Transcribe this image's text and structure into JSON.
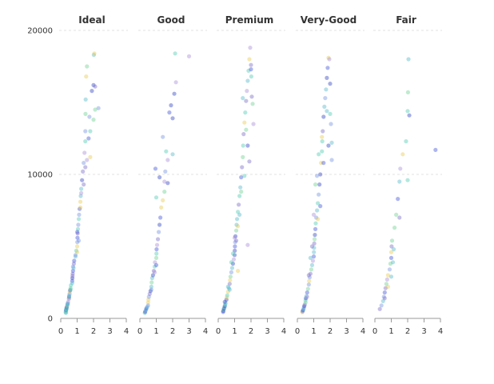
{
  "chart_data": {
    "type": "scatter",
    "title": "",
    "xlabel": "",
    "ylabel": "",
    "xlim": [
      0,
      4
    ],
    "ylim": [
      0,
      20000
    ],
    "x_ticks": [
      "0",
      "1",
      "2",
      "3",
      "4"
    ],
    "y_ticks": [
      "0",
      "10000",
      "20000"
    ],
    "grid": "horizontal dashed",
    "colors": [
      "#2a3fbf",
      "#3b4fd8",
      "#6f8fe0",
      "#4fb6c9",
      "#49c7b0",
      "#6ad08c",
      "#e6c84a",
      "#a68ad6",
      "#7667c4"
    ],
    "facets": [
      {
        "name": "Ideal",
        "points": [
          [
            0.3,
            420
          ],
          [
            0.31,
            500
          ],
          [
            0.32,
            560
          ],
          [
            0.33,
            610
          ],
          [
            0.34,
            650
          ],
          [
            0.35,
            700
          ],
          [
            0.36,
            760
          ],
          [
            0.38,
            820
          ],
          [
            0.4,
            900
          ],
          [
            0.41,
            960
          ],
          [
            0.43,
            1050
          ],
          [
            0.45,
            1150
          ],
          [
            0.5,
            1400
          ],
          [
            0.51,
            1500
          ],
          [
            0.52,
            1600
          ],
          [
            0.54,
            1700
          ],
          [
            0.55,
            1850
          ],
          [
            0.57,
            1950
          ],
          [
            0.6,
            2100
          ],
          [
            0.62,
            2300
          ],
          [
            0.7,
            2600
          ],
          [
            0.71,
            2800
          ],
          [
            0.72,
            2950
          ],
          [
            0.73,
            3100
          ],
          [
            0.75,
            3300
          ],
          [
            0.78,
            3500
          ],
          [
            0.8,
            3800
          ],
          [
            0.82,
            4000
          ],
          [
            0.9,
            4300
          ],
          [
            0.95,
            4700
          ],
          [
            1.0,
            5000
          ],
          [
            1.01,
            5300
          ],
          [
            1.02,
            5600
          ],
          [
            1.03,
            5900
          ],
          [
            1.05,
            6200
          ],
          [
            1.07,
            6500
          ],
          [
            1.1,
            6900
          ],
          [
            1.12,
            7200
          ],
          [
            1.15,
            7600
          ],
          [
            1.2,
            8100
          ],
          [
            1.22,
            8500
          ],
          [
            1.25,
            9000
          ],
          [
            1.3,
            9600
          ],
          [
            1.35,
            10200
          ],
          [
            1.4,
            10800
          ],
          [
            1.45,
            11500
          ],
          [
            1.5,
            12300
          ],
          [
            1.5,
            13000
          ],
          [
            1.51,
            14200
          ],
          [
            1.52,
            15200
          ],
          [
            1.55,
            16800
          ],
          [
            1.6,
            17500
          ],
          [
            1.7,
            12500
          ],
          [
            1.75,
            14000
          ],
          [
            1.8,
            13000
          ],
          [
            1.9,
            15800
          ],
          [
            2.0,
            16200
          ],
          [
            2.02,
            18300
          ],
          [
            2.05,
            18400
          ],
          [
            2.1,
            14500
          ],
          [
            2.1,
            16100
          ],
          [
            2.3,
            14600
          ],
          [
            0.32,
            380
          ],
          [
            0.35,
            640
          ],
          [
            0.42,
            1000
          ],
          [
            0.5,
            1350
          ],
          [
            0.6,
            2000
          ],
          [
            0.7,
            2450
          ],
          [
            0.75,
            3600
          ],
          [
            0.9,
            4400
          ],
          [
            1.0,
            4600
          ],
          [
            1.01,
            6000
          ],
          [
            1.1,
            5400
          ],
          [
            1.2,
            7700
          ],
          [
            1.25,
            8700
          ],
          [
            1.4,
            9300
          ],
          [
            1.5,
            10500
          ],
          [
            1.6,
            11000
          ],
          [
            1.8,
            11200
          ],
          [
            2.0,
            13800
          ]
        ]
      },
      {
        "name": "Good",
        "points": [
          [
            0.3,
            380
          ],
          [
            0.32,
            450
          ],
          [
            0.35,
            550
          ],
          [
            0.38,
            620
          ],
          [
            0.4,
            700
          ],
          [
            0.45,
            800
          ],
          [
            0.5,
            1100
          ],
          [
            0.52,
            1300
          ],
          [
            0.55,
            1500
          ],
          [
            0.6,
            1700
          ],
          [
            0.65,
            1900
          ],
          [
            0.7,
            2200
          ],
          [
            0.72,
            2500
          ],
          [
            0.75,
            2800
          ],
          [
            0.8,
            3000
          ],
          [
            0.85,
            3300
          ],
          [
            0.9,
            3600
          ],
          [
            0.92,
            3900
          ],
          [
            1.0,
            4200
          ],
          [
            1.01,
            4500
          ],
          [
            1.02,
            4800
          ],
          [
            1.05,
            5100
          ],
          [
            1.1,
            5500
          ],
          [
            1.15,
            6000
          ],
          [
            1.2,
            6500
          ],
          [
            1.25,
            7000
          ],
          [
            1.3,
            7700
          ],
          [
            1.4,
            8200
          ],
          [
            1.5,
            8800
          ],
          [
            1.5,
            9500
          ],
          [
            1.55,
            10200
          ],
          [
            1.7,
            11000
          ],
          [
            1.8,
            14300
          ],
          [
            1.9,
            14800
          ],
          [
            2.0,
            13900
          ],
          [
            2.1,
            15600
          ],
          [
            2.15,
            18400
          ],
          [
            2.2,
            16400
          ],
          [
            3.0,
            18200
          ],
          [
            0.95,
            10400
          ],
          [
            1.0,
            8400
          ],
          [
            1.2,
            9800
          ],
          [
            1.4,
            12600
          ],
          [
            1.6,
            11600
          ],
          [
            1.7,
            9400
          ],
          [
            2.0,
            11400
          ],
          [
            0.5,
            900
          ],
          [
            0.7,
            2000
          ],
          [
            0.9,
            3200
          ],
          [
            1.0,
            3700
          ]
        ]
      },
      {
        "name": "Premium",
        "points": [
          [
            0.3,
            450
          ],
          [
            0.31,
            520
          ],
          [
            0.33,
            600
          ],
          [
            0.35,
            680
          ],
          [
            0.38,
            760
          ],
          [
            0.4,
            850
          ],
          [
            0.42,
            950
          ],
          [
            0.45,
            1050
          ],
          [
            0.5,
            1300
          ],
          [
            0.52,
            1450
          ],
          [
            0.55,
            1600
          ],
          [
            0.6,
            1850
          ],
          [
            0.65,
            2100
          ],
          [
            0.7,
            2400
          ],
          [
            0.72,
            2650
          ],
          [
            0.75,
            2900
          ],
          [
            0.8,
            3200
          ],
          [
            0.85,
            3500
          ],
          [
            0.9,
            3800
          ],
          [
            0.95,
            4100
          ],
          [
            1.0,
            4400
          ],
          [
            1.01,
            4700
          ],
          [
            1.02,
            5000
          ],
          [
            1.03,
            5300
          ],
          [
            1.05,
            5700
          ],
          [
            1.1,
            6100
          ],
          [
            1.12,
            6500
          ],
          [
            1.15,
            6900
          ],
          [
            1.2,
            7400
          ],
          [
            1.25,
            7900
          ],
          [
            1.3,
            8500
          ],
          [
            1.35,
            9100
          ],
          [
            1.4,
            9800
          ],
          [
            1.45,
            10500
          ],
          [
            1.5,
            11200
          ],
          [
            1.52,
            12000
          ],
          [
            1.55,
            12800
          ],
          [
            1.6,
            13600
          ],
          [
            1.65,
            14300
          ],
          [
            1.7,
            15100
          ],
          [
            1.75,
            15800
          ],
          [
            1.8,
            16500
          ],
          [
            1.85,
            17200
          ],
          [
            1.9,
            18000
          ],
          [
            1.95,
            18800
          ],
          [
            2.0,
            17600
          ],
          [
            2.02,
            16800
          ],
          [
            2.05,
            15400
          ],
          [
            2.1,
            14900
          ],
          [
            2.15,
            13500
          ],
          [
            1.5,
            15300
          ],
          [
            1.8,
            12000
          ],
          [
            1.9,
            10900
          ],
          [
            1.6,
            9900
          ],
          [
            1.4,
            8800
          ],
          [
            1.3,
            7200
          ],
          [
            1.2,
            6400
          ],
          [
            1.0,
            5600
          ],
          [
            0.8,
            3900
          ],
          [
            0.7,
            2000
          ],
          [
            1.8,
            5100
          ],
          [
            1.2,
            3300
          ],
          [
            0.4,
            1150
          ],
          [
            0.6,
            2200
          ],
          [
            0.9,
            4500
          ],
          [
            1.1,
            5400
          ],
          [
            1.7,
            13100
          ],
          [
            2.0,
            17300
          ]
        ]
      },
      {
        "name": "Very-Good",
        "points": [
          [
            0.3,
            420
          ],
          [
            0.32,
            500
          ],
          [
            0.35,
            580
          ],
          [
            0.38,
            660
          ],
          [
            0.4,
            750
          ],
          [
            0.42,
            850
          ],
          [
            0.45,
            950
          ],
          [
            0.5,
            1250
          ],
          [
            0.52,
            1400
          ],
          [
            0.55,
            1550
          ],
          [
            0.6,
            1800
          ],
          [
            0.65,
            2050
          ],
          [
            0.7,
            2350
          ],
          [
            0.72,
            2600
          ],
          [
            0.75,
            2850
          ],
          [
            0.8,
            3100
          ],
          [
            0.85,
            3400
          ],
          [
            0.9,
            3700
          ],
          [
            0.95,
            4000
          ],
          [
            1.0,
            4300
          ],
          [
            1.01,
            4600
          ],
          [
            1.02,
            4900
          ],
          [
            1.03,
            5200
          ],
          [
            1.05,
            5500
          ],
          [
            1.07,
            5800
          ],
          [
            1.1,
            6200
          ],
          [
            1.12,
            6600
          ],
          [
            1.15,
            7000
          ],
          [
            1.2,
            7500
          ],
          [
            1.25,
            8000
          ],
          [
            1.3,
            8600
          ],
          [
            1.35,
            9300
          ],
          [
            1.4,
            10000
          ],
          [
            1.45,
            10800
          ],
          [
            1.5,
            11600
          ],
          [
            1.52,
            12300
          ],
          [
            1.55,
            13000
          ],
          [
            1.6,
            14000
          ],
          [
            1.65,
            14700
          ],
          [
            1.7,
            15300
          ],
          [
            1.75,
            15900
          ],
          [
            1.8,
            16700
          ],
          [
            1.85,
            17400
          ],
          [
            1.9,
            18100
          ],
          [
            1.95,
            18000
          ],
          [
            2.0,
            16300
          ],
          [
            2.0,
            14200
          ],
          [
            2.05,
            13500
          ],
          [
            2.1,
            12200
          ],
          [
            2.1,
            11000
          ],
          [
            1.5,
            12600
          ],
          [
            1.3,
            11400
          ],
          [
            1.2,
            9900
          ],
          [
            1.1,
            9300
          ],
          [
            1.0,
            7200
          ],
          [
            0.9,
            5000
          ],
          [
            0.8,
            4200
          ],
          [
            0.7,
            3000
          ],
          [
            0.6,
            1500
          ],
          [
            1.8,
            14400
          ],
          [
            1.9,
            12000
          ],
          [
            1.6,
            10800
          ],
          [
            1.4,
            7800
          ],
          [
            1.25,
            6900
          ],
          [
            0.5,
            1100
          ]
        ]
      },
      {
        "name": "Fair",
        "points": [
          [
            0.3,
            650
          ],
          [
            0.4,
            900
          ],
          [
            0.5,
            1200
          ],
          [
            0.55,
            1500
          ],
          [
            0.6,
            1800
          ],
          [
            0.65,
            2100
          ],
          [
            0.7,
            2400
          ],
          [
            0.75,
            2700
          ],
          [
            0.8,
            3000
          ],
          [
            0.9,
            3400
          ],
          [
            0.95,
            3800
          ],
          [
            1.0,
            4200
          ],
          [
            1.0,
            4600
          ],
          [
            1.02,
            5000
          ],
          [
            1.05,
            5400
          ],
          [
            1.1,
            3900
          ],
          [
            1.15,
            4800
          ],
          [
            1.2,
            6300
          ],
          [
            1.3,
            7200
          ],
          [
            1.4,
            8300
          ],
          [
            1.5,
            9500
          ],
          [
            1.55,
            10400
          ],
          [
            1.7,
            11400
          ],
          [
            1.9,
            12300
          ],
          [
            2.0,
            14400
          ],
          [
            2.02,
            15700
          ],
          [
            2.05,
            18000
          ],
          [
            2.1,
            14100
          ],
          [
            3.7,
            11700
          ],
          [
            1.0,
            2900
          ],
          [
            0.6,
            1400
          ],
          [
            0.8,
            2200
          ],
          [
            1.5,
            7000
          ],
          [
            2.0,
            9600
          ]
        ]
      }
    ]
  }
}
